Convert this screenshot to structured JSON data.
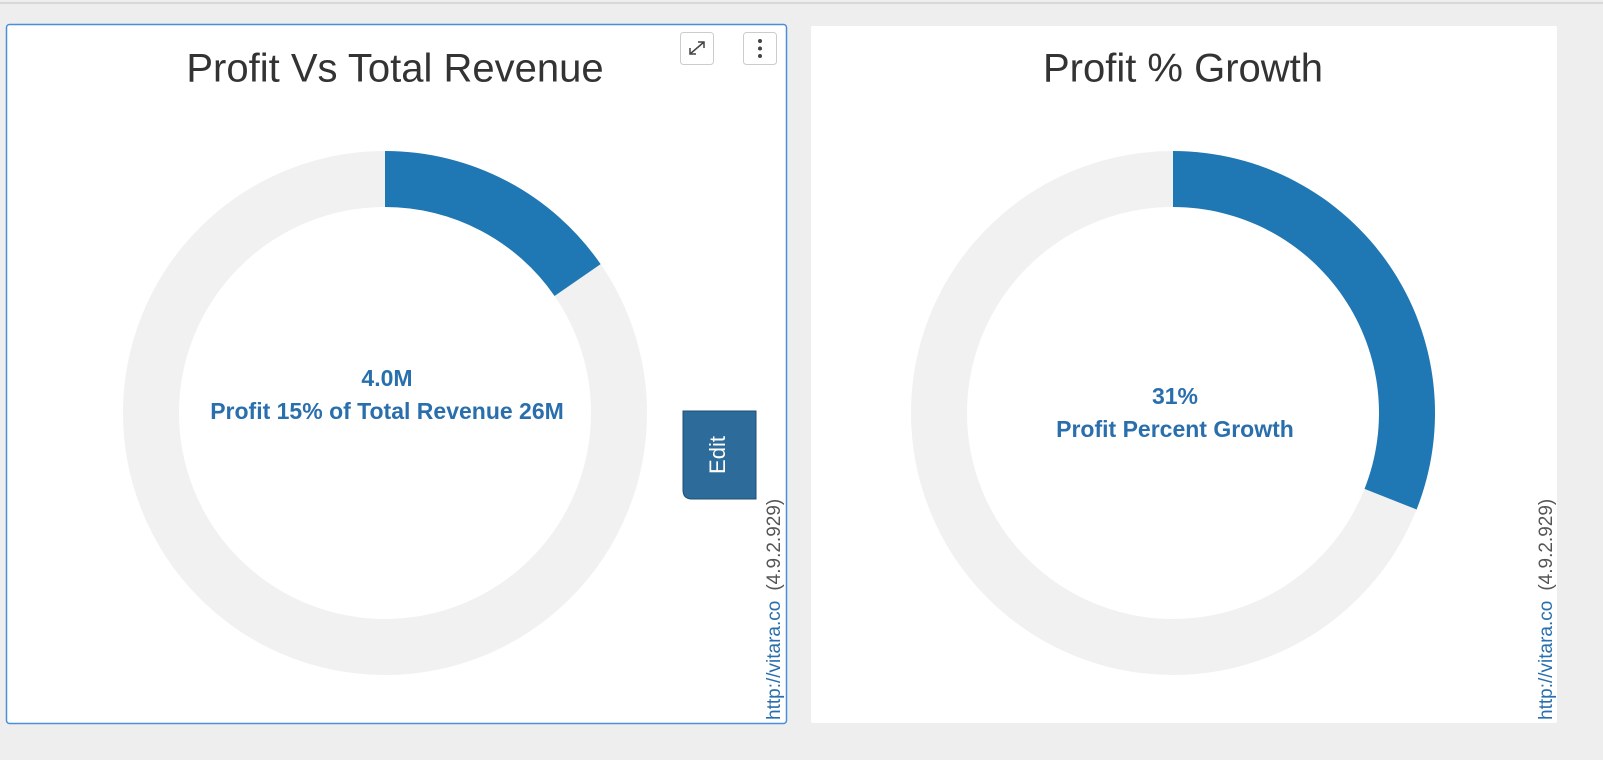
{
  "chart_data": [
    {
      "type": "donut",
      "title": "Profit Vs Total Revenue",
      "values": [
        4000000
      ],
      "value_labels": [
        "4.0M"
      ],
      "ylim": [
        0,
        26000000
      ],
      "center_text": "Profit 15% of Total Revenue 26M",
      "color": "#1f77b4",
      "link": "http://vitara.co",
      "version": "(4.9.2.929)"
    },
    {
      "type": "donut",
      "title": "Profit % Growth",
      "values": [
        31
      ],
      "value_labels": [
        "31%"
      ],
      "ylim": [
        0,
        100
      ],
      "center_text": "Profit Percent Growth",
      "color": "#1f77b4",
      "link": "http://vitara.co",
      "version": "(4.9.2.929)"
    }
  ],
  "edit_button": "Edit"
}
